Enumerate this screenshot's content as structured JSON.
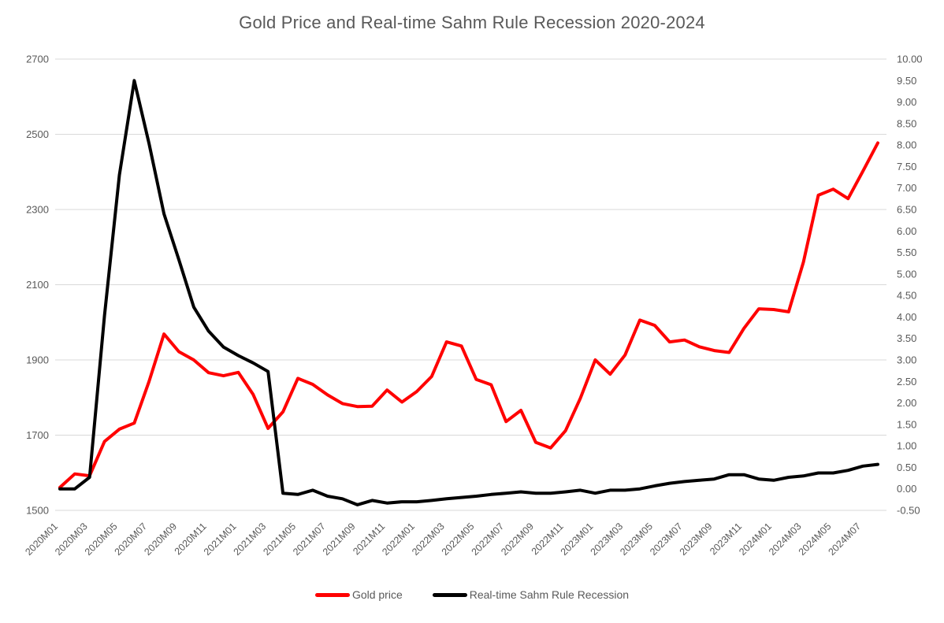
{
  "page": {
    "background": "#FFFFFF"
  },
  "chart_data": {
    "type": "line",
    "title": "Gold Price and Real-time Sahm Rule Recession 2020-2024",
    "categories": [
      "2020M01",
      "2020M02",
      "2020M03",
      "2020M04",
      "2020M05",
      "2020M06",
      "2020M07",
      "2020M08",
      "2020M09",
      "2020M10",
      "2020M11",
      "2020M12",
      "2021M01",
      "2021M02",
      "2021M03",
      "2021M04",
      "2021M05",
      "2021M06",
      "2021M07",
      "2021M08",
      "2021M09",
      "2021M10",
      "2021M11",
      "2021M12",
      "2022M01",
      "2022M02",
      "2022M03",
      "2022M04",
      "2022M05",
      "2022M06",
      "2022M07",
      "2022M08",
      "2022M09",
      "2022M10",
      "2022M11",
      "2022M12",
      "2023M01",
      "2023M02",
      "2023M03",
      "2023M04",
      "2023M05",
      "2023M06",
      "2023M07",
      "2023M08",
      "2023M09",
      "2023M10",
      "2023M11",
      "2023M12",
      "2024M01",
      "2024M02",
      "2024M03",
      "2024M04",
      "2024M05",
      "2024M06",
      "2024M07",
      "2024M08"
    ],
    "x_tick_step": 2,
    "series": [
      {
        "name": "Gold price",
        "axis": "left",
        "color": "#FF0000",
        "values": [
          1561,
          1597,
          1592,
          1683,
          1716,
          1732,
          1843,
          1969,
          1922,
          1900,
          1866,
          1858,
          1867,
          1808,
          1718,
          1762,
          1851,
          1835,
          1807,
          1784,
          1776,
          1777,
          1820,
          1788,
          1816,
          1856,
          1948,
          1937,
          1848,
          1834,
          1736,
          1766,
          1681,
          1666,
          1712,
          1798,
          1900,
          1862,
          1913,
          2006,
          1992,
          1948,
          1953,
          1935,
          1925,
          1920,
          1984,
          2036,
          2034,
          2028,
          2160,
          2338,
          2354,
          2329,
          2402,
          2477
        ]
      },
      {
        "name": "Real-time Sahm Rule Recession",
        "axis": "right",
        "color": "#000000",
        "values": [
          0.0,
          0.0,
          0.27,
          4.03,
          7.3,
          9.5,
          8.03,
          6.4,
          5.33,
          4.23,
          3.67,
          3.3,
          3.1,
          2.93,
          2.73,
          -0.1,
          -0.13,
          -0.03,
          -0.17,
          -0.23,
          -0.37,
          -0.27,
          -0.33,
          -0.3,
          -0.3,
          -0.27,
          -0.23,
          -0.2,
          -0.17,
          -0.13,
          -0.1,
          -0.07,
          -0.1,
          -0.1,
          -0.07,
          -0.03,
          -0.1,
          -0.03,
          -0.03,
          0.0,
          0.07,
          0.13,
          0.17,
          0.2,
          0.23,
          0.33,
          0.33,
          0.23,
          0.2,
          0.27,
          0.3,
          0.37,
          0.37,
          0.43,
          0.53,
          0.57
        ]
      }
    ],
    "left_axis": {
      "min": 1500,
      "max": 2700,
      "step": 200,
      "decimals": 0
    },
    "right_axis": {
      "min": -0.5,
      "max": 10.0,
      "step": 0.5,
      "decimals": 2
    },
    "grid": true,
    "legend_position": "bottom",
    "x_label_rotation": -45,
    "colors": {
      "grid": "#D9D9D9",
      "axis_text": "#595959",
      "title_text": "#595959",
      "legend_text": "#595959"
    }
  }
}
